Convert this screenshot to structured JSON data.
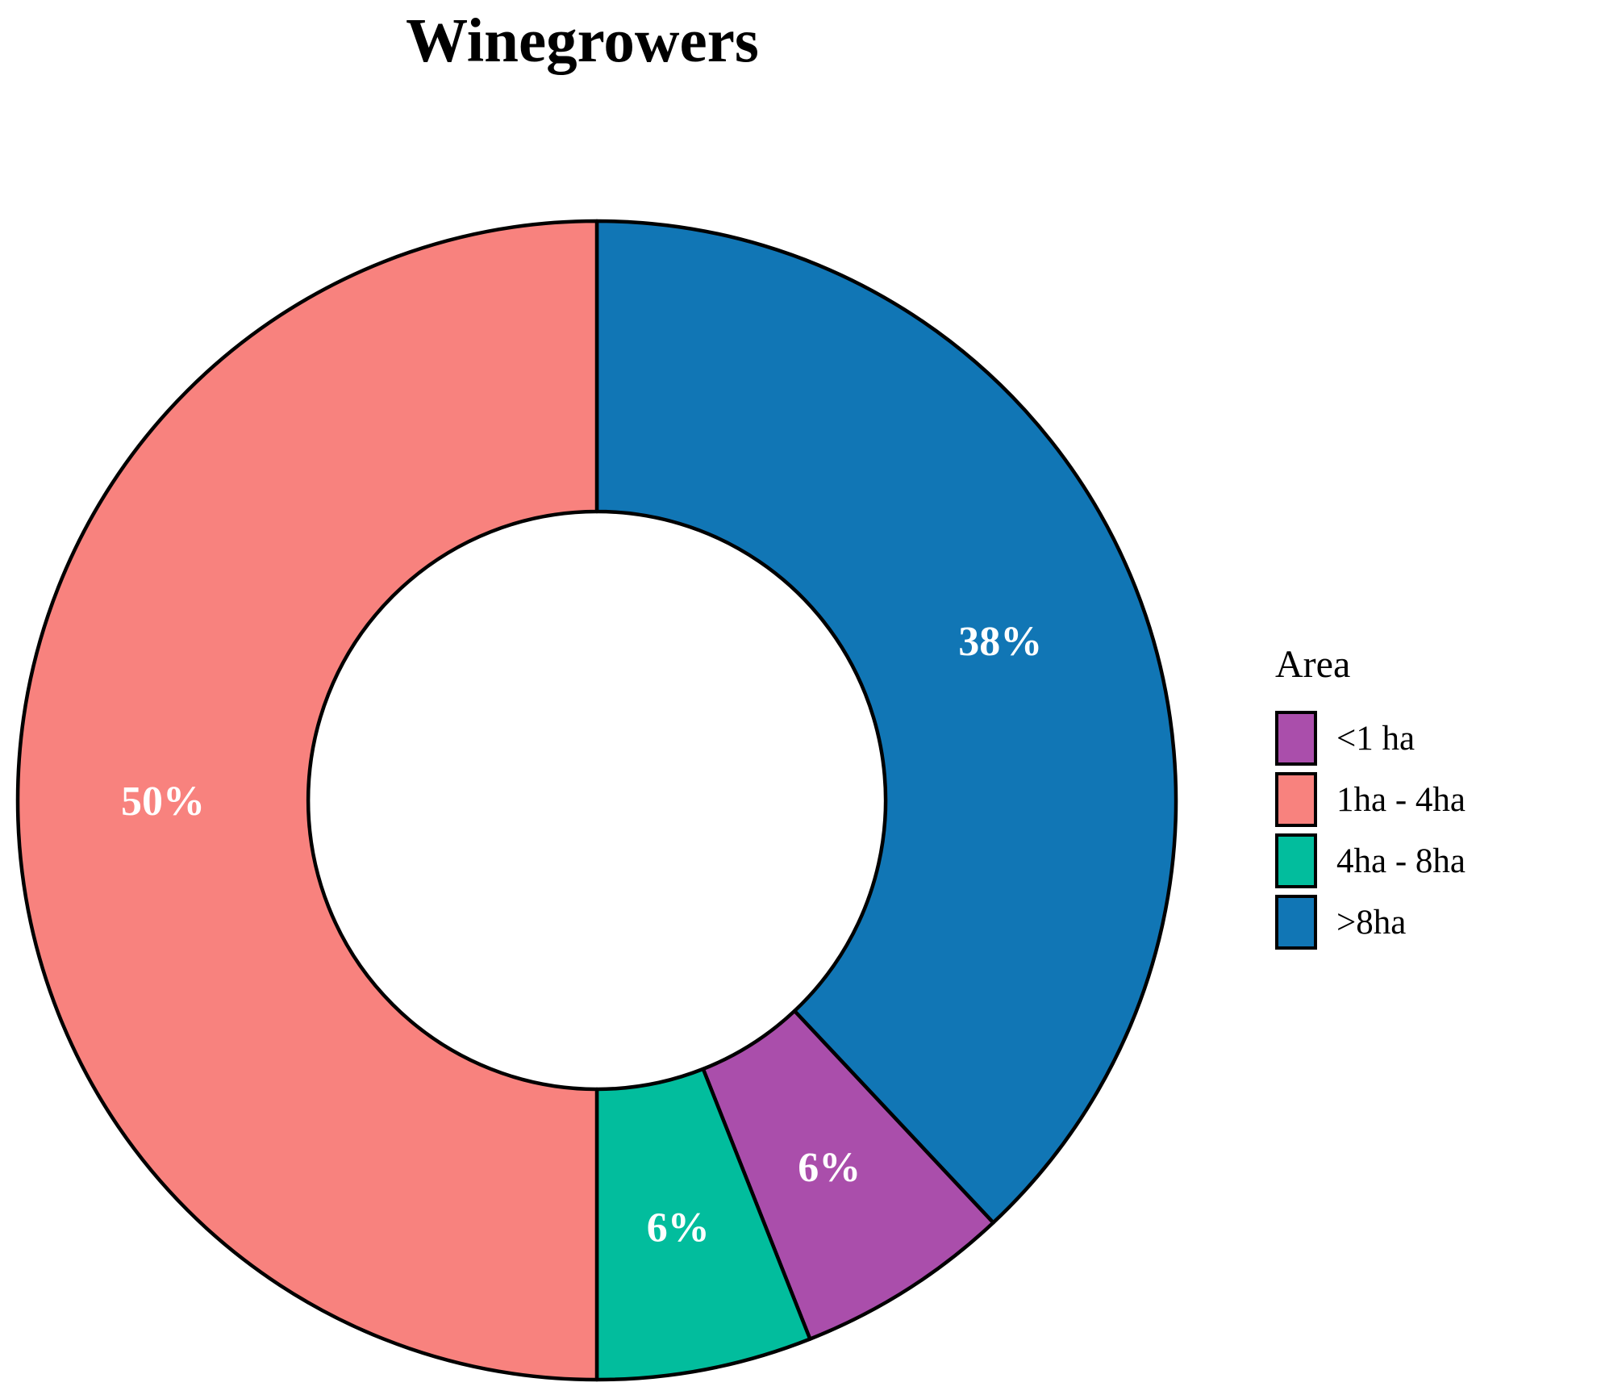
{
  "chart_data": {
    "type": "pie",
    "subtype": "donut",
    "title": "Winegrowers",
    "legend_title": "Area",
    "legend_position": "right",
    "donut_hole_ratio": 0.5,
    "start_angle_deg": 0,
    "direction": "clockwise",
    "categories": [
      "<1 ha",
      "1ha - 4ha",
      "4ha - 8ha",
      ">8ha"
    ],
    "values": [
      6,
      50,
      6,
      38
    ],
    "slice_label_color": "#ffffff",
    "outline_color": "#000000",
    "background_color": "#ffffff",
    "slices_draw_order": [
      {
        "category": ">8ha",
        "value": 38,
        "label_text": "38%",
        "color": "#1176B5"
      },
      {
        "category": "<1 ha",
        "value": 6,
        "label_text": "6%",
        "color": "#AA4EAB"
      },
      {
        "category": "4ha - 8ha",
        "value": 6,
        "label_text": "6%",
        "color": "#02BD9D"
      },
      {
        "category": "1ha - 4ha",
        "value": 50,
        "label_text": "50%",
        "color": "#F8827E"
      }
    ],
    "legend": [
      {
        "label": "<1 ha",
        "color": "#AA4EAB"
      },
      {
        "label": "1ha - 4ha",
        "color": "#F8827E"
      },
      {
        "label": "4ha - 8ha",
        "color": "#02BD9D"
      },
      {
        "label": ">8ha",
        "color": "#1176B5"
      }
    ]
  }
}
